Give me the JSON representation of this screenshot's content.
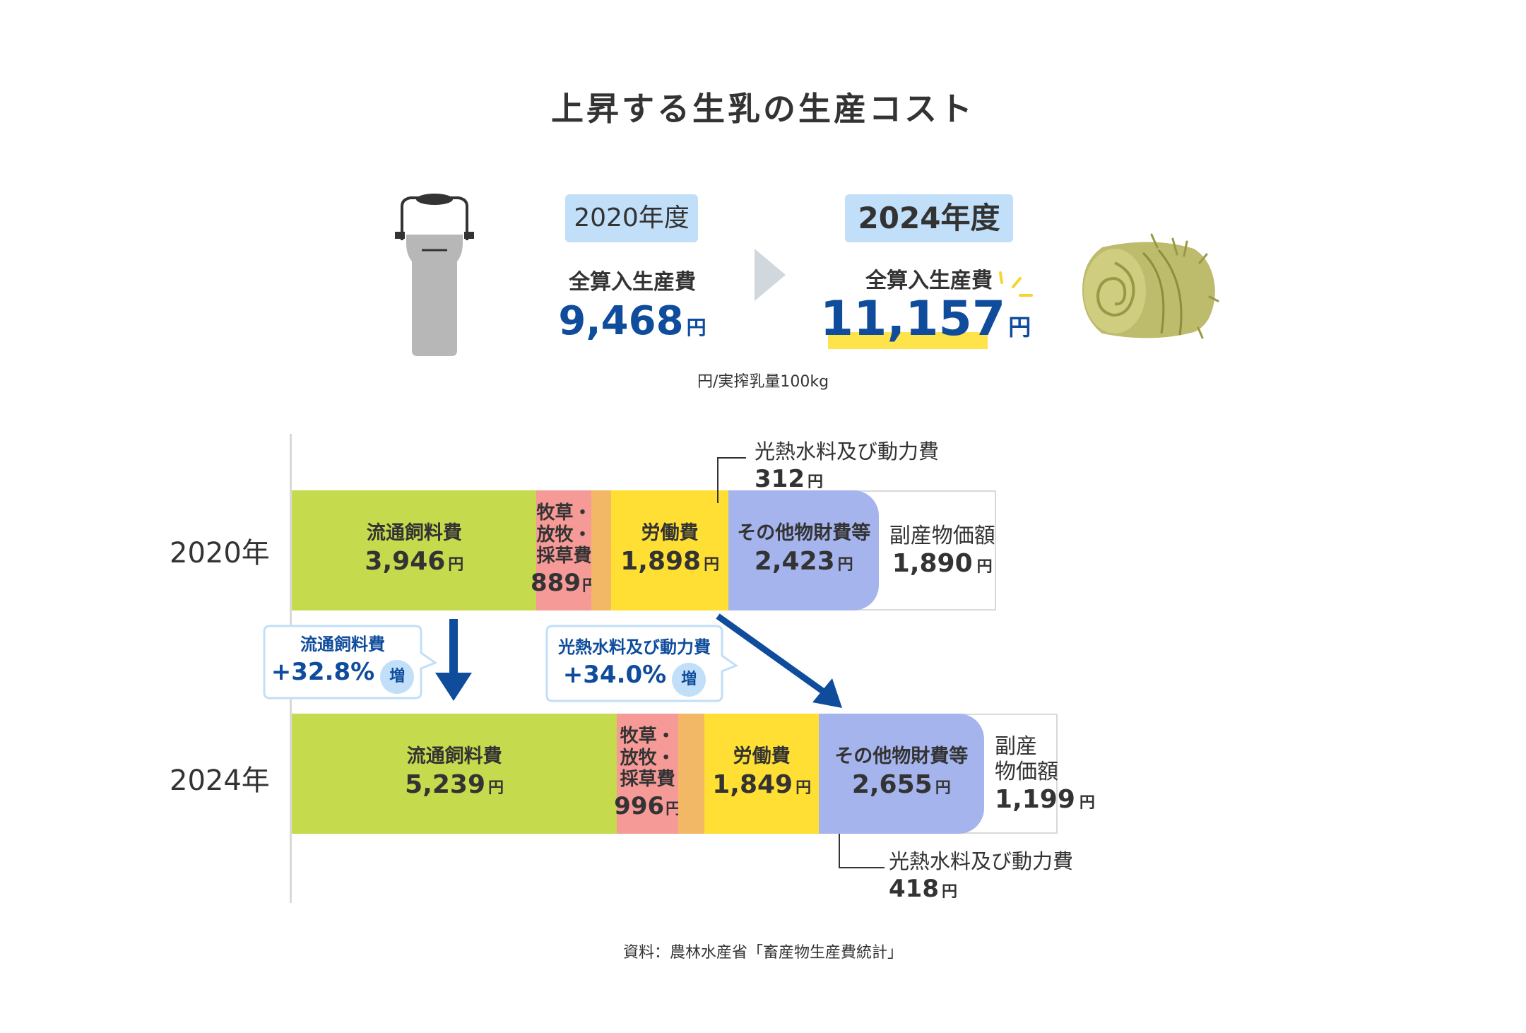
{
  "title": "上昇する生乳の生産コスト",
  "summary": {
    "before": {
      "year_label": "2020年度",
      "cost_label": "全算入生産費",
      "value": "9,468",
      "unit": "円"
    },
    "after": {
      "year_label": "2024年度",
      "cost_label": "全算入生産費",
      "value": "11,157",
      "unit": "円"
    },
    "unit_note": "円/実搾乳量100kg"
  },
  "bubbles": [
    {
      "title": "流通飼料費",
      "value": "+32.8",
      "pct": "%",
      "badge": "増"
    },
    {
      "title": "光熱水料及び動力費",
      "value": "+34.0",
      "pct": "%",
      "badge": "増"
    }
  ],
  "callouts": [
    {
      "name": "光熱水料及び動力費",
      "value": "312",
      "unit": "円"
    },
    {
      "name": "光熱水料及び動力費",
      "value": "418",
      "unit": "円"
    }
  ],
  "source": "資料：農林水産省「畜産物生産費統計」",
  "colors": {
    "feed": "#c5da4d",
    "pasture": "#f59a96",
    "utilities": "#f2b866",
    "labor": "#ffdf33",
    "other": "#a5b4ec",
    "accent": "#0f4c9c",
    "tag": "#c1dff8",
    "highlight": "#fee34a"
  },
  "icons": [
    "milk-can-icon",
    "hay-bale-icon",
    "chevron-right-icon",
    "down-arrow-icon",
    "diagonal-arrow-icon"
  ],
  "chart_data": {
    "type": "bar",
    "orientation": "horizontal",
    "stacked": true,
    "categories": [
      "2020年",
      "2024年"
    ],
    "series": [
      {
        "key": "feed",
        "name": "流通飼料費",
        "values": [
          3946,
          5239
        ],
        "labels": [
          "3,946",
          "5,239"
        ]
      },
      {
        "key": "pasture",
        "name": "牧草・\n放牧・\n採草費",
        "values": [
          889,
          996
        ],
        "labels": [
          "889",
          "996"
        ]
      },
      {
        "key": "utilities",
        "name": "光熱水料及び動力費",
        "values": [
          312,
          418
        ],
        "labels": [
          "312",
          "418"
        ]
      },
      {
        "key": "labor",
        "name": "労働費",
        "values": [
          1898,
          1849
        ],
        "labels": [
          "1,898",
          "1,849"
        ]
      },
      {
        "key": "other",
        "name": "その他物財費等",
        "values": [
          2423,
          2655
        ],
        "labels": [
          "2,423",
          "2,655"
        ]
      }
    ],
    "byproduct": {
      "values": [
        1890,
        1199
      ],
      "labels": [
        "1,890",
        "1,199"
      ],
      "names": [
        "副産物価額",
        "副産\n物価額"
      ]
    },
    "unit": "円"
  }
}
